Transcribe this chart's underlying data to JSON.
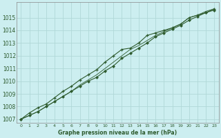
{
  "title": "Graphe pression niveau de la mer (hPa)",
  "background_color": "#cceef0",
  "grid_color": "#b0d8d8",
  "line_color": "#2d5a2d",
  "xlim": [
    -0.5,
    23.5
  ],
  "ylim": [
    1006.7,
    1016.2
  ],
  "yticks": [
    1007,
    1008,
    1009,
    1010,
    1011,
    1012,
    1013,
    1014,
    1015
  ],
  "xtick_labels": [
    "0",
    "1",
    "2",
    "3",
    "4",
    "5",
    "6",
    "7",
    "8",
    "9",
    "10",
    "11",
    "12",
    "13",
    "14",
    "15",
    "16",
    "17",
    "18",
    "19",
    "20",
    "21",
    "22",
    "23"
  ],
  "series1_plus": [
    1007.0,
    1007.5,
    1007.9,
    1008.2,
    1008.7,
    1009.2,
    1009.6,
    1010.1,
    1010.5,
    1010.9,
    1011.5,
    1012.0,
    1012.5,
    1012.6,
    1013.0,
    1013.6,
    1013.8,
    1014.0,
    1014.2,
    1014.5,
    1015.0,
    1015.2,
    1015.4,
    1015.7
  ],
  "series2_dot": [
    1007.0,
    1007.3,
    1007.6,
    1008.0,
    1008.4,
    1008.8,
    1009.2,
    1009.6,
    1010.0,
    1010.3,
    1010.8,
    1011.2,
    1011.8,
    1012.2,
    1012.6,
    1013.0,
    1013.5,
    1013.8,
    1014.1,
    1014.4,
    1014.8,
    1015.1,
    1015.4,
    1015.6
  ],
  "series3_line": [
    1007.0,
    1007.3,
    1007.6,
    1008.0,
    1008.4,
    1008.8,
    1009.2,
    1009.7,
    1010.1,
    1010.5,
    1011.0,
    1011.5,
    1012.0,
    1012.5,
    1012.8,
    1013.2,
    1013.6,
    1013.9,
    1014.2,
    1014.5,
    1015.0,
    1015.2,
    1015.5,
    1015.7
  ]
}
